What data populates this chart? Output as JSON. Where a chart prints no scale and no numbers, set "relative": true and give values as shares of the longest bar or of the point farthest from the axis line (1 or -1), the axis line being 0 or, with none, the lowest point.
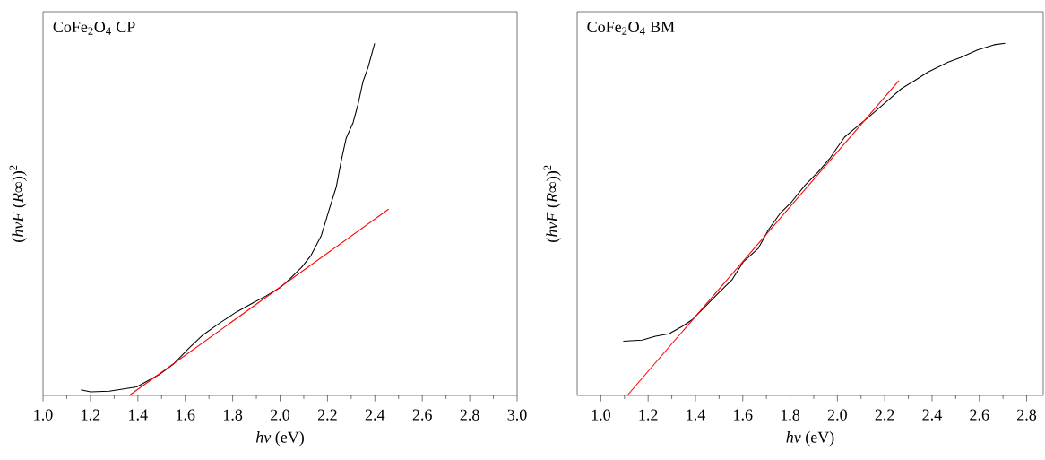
{
  "chart_data": [
    {
      "type": "line",
      "annotations": [
        "CoFe$_{2}$O$_{4}$ CP"
      ],
      "xlabel": "*hν* (eV)",
      "ylabel": "(*hνF* (*R*∞))$^{2}$",
      "relative": true,
      "tick_labels": "x",
      "xlim": [
        1.0,
        3.0
      ],
      "xticks": [
        {
          "value": 1.0,
          "label": "1.0"
        },
        {
          "value": 1.2,
          "label": "1.2"
        },
        {
          "value": 1.4,
          "label": "1.4"
        },
        {
          "value": 1.6,
          "label": "1.6"
        },
        {
          "value": 1.8,
          "label": "1.8"
        },
        {
          "value": 2.0,
          "label": "2.0"
        },
        {
          "value": 2.2,
          "label": "2.2"
        },
        {
          "value": 2.4,
          "label": "2.4"
        },
        {
          "value": 2.6,
          "label": "2.6"
        },
        {
          "value": 2.8,
          "label": "2.8"
        },
        {
          "value": 3.0,
          "label": "3.0"
        }
      ],
      "series": [
        {
          "color": "#000000",
          "x": [
            1.16,
            1.2,
            1.28,
            1.395,
            1.49,
            1.55,
            1.62,
            1.675,
            1.746,
            1.816,
            1.886,
            1.942,
            2.0,
            2.04,
            2.09,
            2.13,
            2.174,
            2.209,
            2.237,
            2.258,
            2.279,
            2.308,
            2.329,
            2.35,
            2.371,
            2.399
          ],
          "values": [
            0.016,
            0.01,
            0.012,
            0.024,
            0.059,
            0.089,
            0.137,
            0.172,
            0.206,
            0.237,
            0.263,
            0.283,
            0.306,
            0.33,
            0.363,
            0.397,
            0.454,
            0.532,
            0.592,
            0.666,
            0.731,
            0.775,
            0.827,
            0.892,
            0.931,
            1.0
          ]
        },
        {
          "color": "#ff0000",
          "x": [
            1.364,
            2.458
          ],
          "values": [
            0.0,
            0.529
          ]
        }
      ]
    },
    {
      "type": "line",
      "annotations": [
        "CoFe$_{2}$O$_{4}$ BM"
      ],
      "xlabel": "*hν* (eV)",
      "ylabel": "(*hνF* (*R*∞))$^{2}$",
      "relative": true,
      "tick_labels": "x",
      "xlim": [
        0.9,
        2.87
      ],
      "xticks": [
        {
          "value": 1.0,
          "label": "1.0"
        },
        {
          "value": 1.2,
          "label": "1.2"
        },
        {
          "value": 1.4,
          "label": "1.4"
        },
        {
          "value": 1.6,
          "label": "1.6"
        },
        {
          "value": 1.8,
          "label": "1.8"
        },
        {
          "value": 2.0,
          "label": "2.0"
        },
        {
          "value": 2.2,
          "label": "2.2"
        },
        {
          "value": 2.4,
          "label": "2.4"
        },
        {
          "value": 2.6,
          "label": "2.6"
        },
        {
          "value": 2.8,
          "label": "2.8"
        }
      ],
      "series": [
        {
          "color": "#000000",
          "x": [
            1.095,
            1.175,
            1.231,
            1.288,
            1.344,
            1.386,
            1.442,
            1.498,
            1.554,
            1.603,
            1.666,
            1.708,
            1.758,
            1.807,
            1.863,
            1.919,
            1.968,
            1.996,
            2.031,
            2.073,
            2.115,
            2.157,
            2.214,
            2.27,
            2.326,
            2.382,
            2.466,
            2.522,
            2.592,
            2.662,
            2.709
          ],
          "values": [
            0.154,
            0.157,
            0.168,
            0.175,
            0.196,
            0.215,
            0.253,
            0.291,
            0.328,
            0.38,
            0.418,
            0.47,
            0.517,
            0.55,
            0.597,
            0.635,
            0.673,
            0.701,
            0.734,
            0.758,
            0.781,
            0.805,
            0.838,
            0.871,
            0.894,
            0.918,
            0.946,
            0.96,
            0.981,
            0.996,
            1.0
          ]
        },
        {
          "color": "#ff0000",
          "x": [
            1.112,
            2.26
          ],
          "values": [
            0.0,
            0.894
          ]
        }
      ]
    }
  ]
}
